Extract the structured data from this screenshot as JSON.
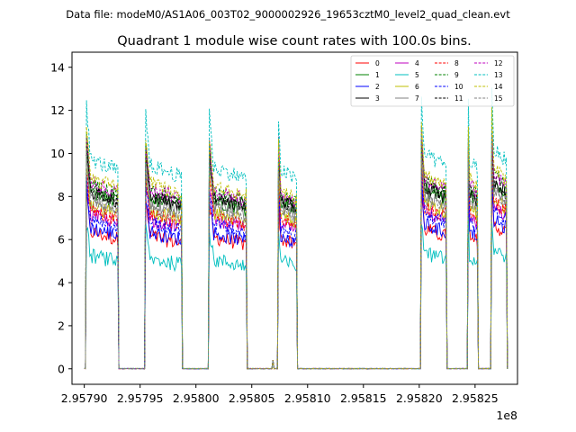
{
  "chart_data": {
    "type": "line",
    "suptitle": "Data file: modeM0/AS1A06_003T02_9000002926_19653cztM0_level2_quad_clean.evt",
    "title": "Quadrant 1 module wise count rates with 100.0s bins.",
    "xlabel": "",
    "ylabel": "",
    "x_offset_label": "1e8",
    "xlim": [
      2.957889,
      2.958288
    ],
    "ylim": [
      -0.72,
      14.7
    ],
    "x_ticks": [
      2.9579,
      2.95795,
      2.958,
      2.95805,
      2.9581,
      2.95815,
      2.9582,
      2.95825
    ],
    "x_tick_labels": [
      "2.95790",
      "2.95795",
      "2.95800",
      "2.95805",
      "2.95810",
      "2.95815",
      "2.95820",
      "2.95825"
    ],
    "y_ticks": [
      0,
      2,
      4,
      6,
      8,
      10,
      12,
      14
    ],
    "y_tick_labels": [
      "0",
      "2",
      "4",
      "6",
      "8",
      "10",
      "12",
      "14"
    ],
    "legend_position": "upper-right",
    "segments": [
      {
        "start": 2.957902,
        "end": 2.95793,
        "level": 1.0
      },
      {
        "start": 2.957955,
        "end": 2.957987,
        "level": 0.97
      },
      {
        "start": 2.958012,
        "end": 2.958045,
        "level": 0.96
      },
      {
        "start": 2.958074,
        "end": 2.95809,
        "level": 0.95
      },
      {
        "start": 2.958202,
        "end": 2.958224,
        "level": 1.02
      },
      {
        "start": 2.958244,
        "end": 2.958252,
        "level": 1.0
      },
      {
        "start": 2.958265,
        "end": 2.958278,
        "level": 1.05
      }
    ],
    "blips": [
      {
        "at": 2.958069,
        "value": 0.4
      }
    ],
    "series": [
      {
        "name": "0",
        "color": "#ff0000",
        "dash": "solid",
        "base": 6.4
      },
      {
        "name": "1",
        "color": "#008000",
        "dash": "solid",
        "base": 8.2
      },
      {
        "name": "2",
        "color": "#0000ff",
        "dash": "solid",
        "base": 6.6
      },
      {
        "name": "3",
        "color": "#000000",
        "dash": "solid",
        "base": 8.3
      },
      {
        "name": "4",
        "color": "#bf00bf",
        "dash": "solid",
        "base": 7.2
      },
      {
        "name": "5",
        "color": "#00bfbf",
        "dash": "solid",
        "base": 5.3
      },
      {
        "name": "6",
        "color": "#bfbf00",
        "dash": "solid",
        "base": 7.6
      },
      {
        "name": "7",
        "color": "#808080",
        "dash": "solid",
        "base": 8.0
      },
      {
        "name": "8",
        "color": "#ff0000",
        "dash": "dashed",
        "base": 7.4
      },
      {
        "name": "9",
        "color": "#008000",
        "dash": "dashed",
        "base": 8.6
      },
      {
        "name": "10",
        "color": "#0000ff",
        "dash": "dashed",
        "base": 7.0
      },
      {
        "name": "11",
        "color": "#000000",
        "dash": "dashed",
        "base": 8.4
      },
      {
        "name": "12",
        "color": "#bf00bf",
        "dash": "dashed",
        "base": 8.7
      },
      {
        "name": "13",
        "color": "#00bfbf",
        "dash": "dashed",
        "base": 9.8
      },
      {
        "name": "14",
        "color": "#bfbf00",
        "dash": "dashed",
        "base": 8.9
      },
      {
        "name": "15",
        "color": "#808080",
        "dash": "dashed",
        "base": 7.8
      }
    ]
  }
}
